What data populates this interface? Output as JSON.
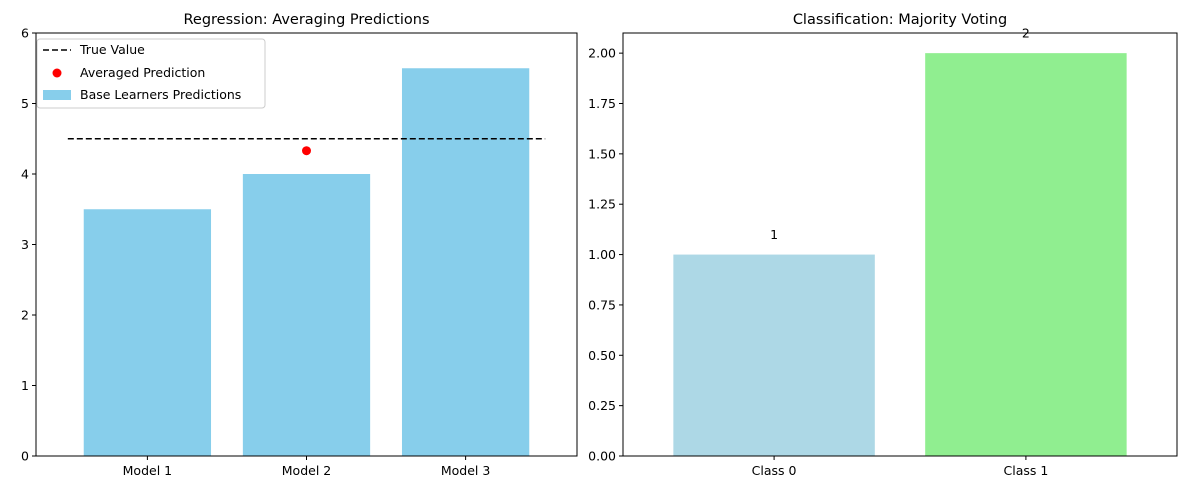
{
  "chart_data": [
    {
      "type": "bar",
      "title": "Regression: Averaging Predictions",
      "xlabel": "",
      "ylabel": "",
      "categories": [
        "Model 1",
        "Model 2",
        "Model 3"
      ],
      "values": [
        3.5,
        4.0,
        5.5
      ],
      "ylim": [
        0,
        6
      ],
      "yticks": [
        "0",
        "1",
        "2",
        "3",
        "4",
        "5",
        "6"
      ],
      "bar_color": "#87CEEB",
      "true_value": 4.5,
      "true_value_color": "#000000",
      "averaged_prediction": {
        "x": "Model 2",
        "y": 4.33
      },
      "averaged_prediction_color": "#ff0000",
      "legend_position": "top-left",
      "legend": [
        "True Value",
        "Averaged Prediction",
        "Base Learners Predictions"
      ]
    },
    {
      "type": "bar",
      "title": "Classification: Majority Voting",
      "xlabel": "",
      "ylabel": "",
      "categories": [
        "Class 0",
        "Class 1"
      ],
      "values": [
        1,
        2
      ],
      "data_labels": [
        "1",
        "2"
      ],
      "ylim": [
        0,
        2.1
      ],
      "yticks": [
        "0.00",
        "0.25",
        "0.50",
        "0.75",
        "1.00",
        "1.25",
        "1.50",
        "1.75",
        "2.00"
      ],
      "bar_colors": [
        "#ADD8E6",
        "#90EE90"
      ]
    }
  ]
}
